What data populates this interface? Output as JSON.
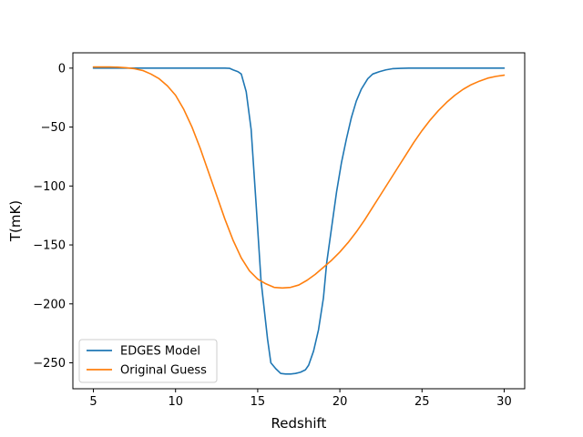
{
  "chart_data": {
    "type": "line",
    "title": "",
    "xlabel": "Redshift",
    "ylabel": "T(mK)",
    "xlim": [
      3.75,
      31.25
    ],
    "ylim": [
      -272,
      13
    ],
    "x_ticks": [
      5,
      10,
      15,
      20,
      25,
      30
    ],
    "y_ticks": [
      0,
      -50,
      -100,
      -150,
      -200,
      -250
    ],
    "grid": false,
    "legend_position": "lower-left",
    "series": [
      {
        "name": "EDGES Model",
        "color": "#1f77b4",
        "x": [
          5,
          5.5,
          6,
          6.5,
          7,
          7.5,
          8,
          8.5,
          9,
          9.5,
          10,
          10.5,
          11,
          11.5,
          12,
          12.5,
          13,
          13.3,
          13.5,
          13.8,
          14.0,
          14.3,
          14.6,
          14.9,
          15.2,
          15.6,
          15.8,
          16.1,
          16.4,
          16.7,
          17.0,
          17.3,
          17.6,
          17.9,
          18.1,
          18.4,
          18.7,
          19.0,
          19.2,
          19.5,
          19.8,
          20.1,
          20.4,
          20.7,
          21.0,
          21.3,
          21.7,
          22.0,
          22.4,
          22.8,
          23.2,
          23.7,
          24.2,
          25,
          26,
          27,
          28,
          29,
          30
        ],
        "values": [
          0,
          0,
          0,
          0,
          0,
          0,
          0,
          0,
          0,
          0,
          0,
          0,
          0,
          0,
          0,
          0,
          0,
          -0.2,
          -1.5,
          -3,
          -5,
          -20,
          -52,
          -115,
          -180,
          -230,
          -250,
          -255,
          -259,
          -259.5,
          -259.5,
          -259,
          -258,
          -256,
          -252,
          -240,
          -222,
          -195,
          -165,
          -135,
          -105,
          -80,
          -60,
          -42,
          -28,
          -18,
          -9,
          -5,
          -3,
          -1.5,
          -0.5,
          -0.2,
          0,
          0,
          0,
          0,
          0,
          0,
          0
        ]
      },
      {
        "name": "Original Guess",
        "color": "#ff7f0e",
        "x": [
          5,
          5.5,
          6,
          6.5,
          7,
          7.5,
          8,
          8.5,
          9,
          9.5,
          10,
          10.5,
          11,
          11.5,
          12,
          12.5,
          13,
          13.5,
          14,
          14.5,
          15,
          15.5,
          16,
          16.5,
          17,
          17.5,
          18,
          18.5,
          19,
          19.5,
          20,
          20.5,
          21,
          21.5,
          22,
          22.5,
          23,
          23.5,
          24,
          24.5,
          25,
          25.5,
          26,
          26.5,
          27,
          27.5,
          28,
          28.5,
          29,
          29.5,
          30
        ],
        "values": [
          1,
          1,
          1,
          0.8,
          0.3,
          -0.5,
          -2,
          -5,
          -9,
          -15,
          -23,
          -35,
          -50,
          -68,
          -88,
          -108,
          -128,
          -146,
          -161,
          -172,
          -179,
          -183,
          -186,
          -186.5,
          -186,
          -184,
          -180,
          -175,
          -169,
          -163,
          -156,
          -148,
          -139,
          -129,
          -118,
          -107,
          -96,
          -85,
          -74,
          -63,
          -53,
          -44,
          -36,
          -29,
          -23,
          -18,
          -14,
          -11,
          -8.5,
          -7,
          -6
        ]
      }
    ]
  }
}
